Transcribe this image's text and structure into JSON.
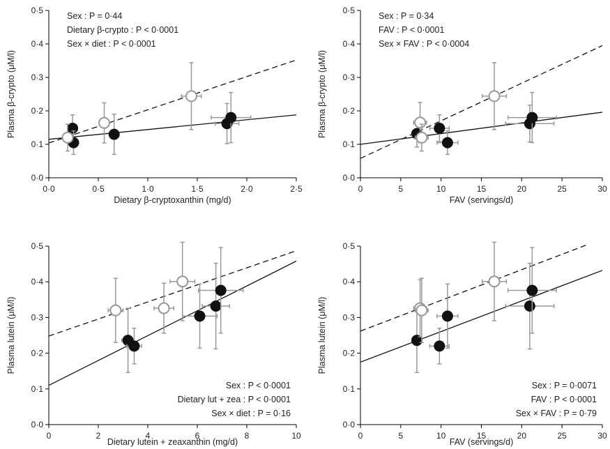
{
  "chart_data": [
    {
      "type": "scatter",
      "xlabel": "Dietary β-cryptoxanthin (mg/d)",
      "ylabel": "Plasma β-crypto (μM/l)",
      "xlim": [
        0,
        2.5
      ],
      "ylim": [
        0,
        0.5
      ],
      "xticks": [
        "0·0",
        "0·5",
        "1·0",
        "1·5",
        "2·0",
        "2·5"
      ],
      "yticks": [
        "0·0",
        "0·1",
        "0·2",
        "0·3",
        "0·4",
        "0·5"
      ],
      "xtick_values": [
        0,
        0.5,
        1.0,
        1.5,
        2.0,
        2.5
      ],
      "ytick_values": [
        0,
        0.1,
        0.2,
        0.3,
        0.4,
        0.5
      ],
      "stats": [
        "Sex : P = 0·44",
        "Dietary β-crypto : P < 0·0001",
        "Sex × diet : P < 0·0001"
      ],
      "stats_position": "top-left",
      "series": [
        {
          "style": "filled",
          "points": [
            {
              "x": 0.24,
              "y": 0.148,
              "xerr": 0.02,
              "yerr": 0.04
            },
            {
              "x": 0.25,
              "y": 0.105,
              "xerr": 0.03,
              "yerr": 0.035
            },
            {
              "x": 0.66,
              "y": 0.13,
              "xerr": 0.05,
              "yerr": 0.06
            },
            {
              "x": 1.8,
              "y": 0.162,
              "xerr": 0.12,
              "yerr": 0.06
            },
            {
              "x": 1.84,
              "y": 0.18,
              "xerr": 0.2,
              "yerr": 0.075
            }
          ],
          "fit": {
            "x": [
              0,
              2.5
            ],
            "y": [
              0.115,
              0.188
            ],
            "dash": false
          }
        },
        {
          "style": "open",
          "points": [
            {
              "x": 0.19,
              "y": 0.12,
              "xerr": 0.03,
              "yerr": 0.04
            },
            {
              "x": 0.56,
              "y": 0.164,
              "xerr": 0.05,
              "yerr": 0.06
            },
            {
              "x": 1.44,
              "y": 0.244,
              "xerr": 0.1,
              "yerr": 0.1
            }
          ],
          "fit": {
            "x": [
              0,
              2.5
            ],
            "y": [
              0.104,
              0.352
            ],
            "dash": true
          }
        }
      ]
    },
    {
      "type": "scatter",
      "xlabel": "FAV (servings/d)",
      "ylabel": "Plasma β-crypto (μM/l)",
      "xlim": [
        0,
        30
      ],
      "ylim": [
        0,
        0.5
      ],
      "xticks": [
        "0",
        "5",
        "10",
        "15",
        "20",
        "25",
        "30"
      ],
      "yticks": [
        "0·0",
        "0·1",
        "0·2",
        "0·3",
        "0·4",
        "0·5"
      ],
      "xtick_values": [
        0,
        5,
        10,
        15,
        20,
        25,
        30
      ],
      "ytick_values": [
        0,
        0.1,
        0.2,
        0.3,
        0.4,
        0.5
      ],
      "stats": [
        "Sex : P = 0·34",
        "FAV : P < 0·0001",
        "Sex × FAV : P < 0·0004"
      ],
      "stats_position": "top-left",
      "series": [
        {
          "style": "filled",
          "points": [
            {
              "x": 7.0,
              "y": 0.132,
              "xerr": 0.6,
              "yerr": 0.04
            },
            {
              "x": 9.8,
              "y": 0.148,
              "xerr": 1.2,
              "yerr": 0.04
            },
            {
              "x": 10.8,
              "y": 0.105,
              "xerr": 1.3,
              "yerr": 0.035
            },
            {
              "x": 21.0,
              "y": 0.162,
              "xerr": 3.0,
              "yerr": 0.055
            },
            {
              "x": 21.3,
              "y": 0.18,
              "xerr": 3.0,
              "yerr": 0.075
            }
          ],
          "fit": {
            "x": [
              0,
              30
            ],
            "y": [
              0.1,
              0.196
            ],
            "dash": false
          }
        },
        {
          "style": "open",
          "points": [
            {
              "x": 7.4,
              "y": 0.165,
              "xerr": 0.8,
              "yerr": 0.06
            },
            {
              "x": 7.6,
              "y": 0.12,
              "xerr": 0.8,
              "yerr": 0.04
            },
            {
              "x": 16.6,
              "y": 0.244,
              "xerr": 1.5,
              "yerr": 0.1
            }
          ],
          "fit": {
            "x": [
              0,
              30
            ],
            "y": [
              0.058,
              0.395
            ],
            "dash": true
          }
        }
      ]
    },
    {
      "type": "scatter",
      "xlabel": "Dietary lutein + zeaxanthin (mg/d)",
      "ylabel": "Plasma lutein (μM/l)",
      "xlim": [
        0,
        10
      ],
      "ylim": [
        0,
        0.5
      ],
      "xticks": [
        "0",
        "2",
        "4",
        "6",
        "8",
        "10"
      ],
      "yticks": [
        "0·0",
        "0·1",
        "0·2",
        "0·3",
        "0·4",
        "0·5"
      ],
      "xtick_values": [
        0,
        2,
        4,
        6,
        8,
        10
      ],
      "ytick_values": [
        0,
        0.1,
        0.2,
        0.3,
        0.4,
        0.5
      ],
      "stats": [
        "Sex : P < 0·0001",
        "Dietary lut + zea : P < 0·0001",
        "Sex × diet : P = 0·16"
      ],
      "stats_position": "bottom-right",
      "series": [
        {
          "style": "filled",
          "points": [
            {
              "x": 3.2,
              "y": 0.236,
              "xerr": 0.25,
              "yerr": 0.09
            },
            {
              "x": 3.45,
              "y": 0.22,
              "xerr": 0.3,
              "yerr": 0.05
            },
            {
              "x": 6.1,
              "y": 0.304,
              "xerr": 0.7,
              "yerr": 0.09
            },
            {
              "x": 6.75,
              "y": 0.332,
              "xerr": 0.55,
              "yerr": 0.12
            },
            {
              "x": 6.95,
              "y": 0.376,
              "xerr": 0.9,
              "yerr": 0.12
            }
          ],
          "fit": {
            "x": [
              0,
              10
            ],
            "y": [
              0.11,
              0.458
            ],
            "dash": false
          }
        },
        {
          "style": "open",
          "points": [
            {
              "x": 2.7,
              "y": 0.32,
              "xerr": 0.3,
              "yerr": 0.09
            },
            {
              "x": 4.65,
              "y": 0.326,
              "xerr": 0.4,
              "yerr": 0.07
            },
            {
              "x": 5.4,
              "y": 0.401,
              "xerr": 0.5,
              "yerr": 0.11
            }
          ],
          "fit": {
            "x": [
              0,
              10
            ],
            "y": [
              0.248,
              0.487
            ],
            "dash": true
          }
        }
      ]
    },
    {
      "type": "scatter",
      "xlabel": "FAV (servings/d)",
      "ylabel": "Plasma lutein (μM/l)",
      "xlim": [
        0,
        30
      ],
      "ylim": [
        0,
        0.5
      ],
      "xticks": [
        "0",
        "5",
        "10",
        "15",
        "20",
        "25",
        "30"
      ],
      "yticks": [
        "0·0",
        "0·1",
        "0·2",
        "0·3",
        "0·4",
        "0·5"
      ],
      "xtick_values": [
        0,
        5,
        10,
        15,
        20,
        25,
        30
      ],
      "ytick_values": [
        0,
        0.1,
        0.2,
        0.3,
        0.4,
        0.5
      ],
      "stats": [
        "Sex : P = 0·0071",
        "FAV : P < 0·0001",
        "Sex × FAV : P = 0·79"
      ],
      "stats_position": "bottom-right",
      "series": [
        {
          "style": "filled",
          "points": [
            {
              "x": 7.0,
              "y": 0.236,
              "xerr": 0.6,
              "yerr": 0.09
            },
            {
              "x": 9.8,
              "y": 0.22,
              "xerr": 1.2,
              "yerr": 0.05
            },
            {
              "x": 10.8,
              "y": 0.304,
              "xerr": 1.3,
              "yerr": 0.09
            },
            {
              "x": 21.0,
              "y": 0.332,
              "xerr": 3.0,
              "yerr": 0.12
            },
            {
              "x": 21.3,
              "y": 0.376,
              "xerr": 3.0,
              "yerr": 0.12
            }
          ],
          "fit": {
            "x": [
              0,
              30
            ],
            "y": [
              0.175,
              0.432
            ],
            "dash": false
          }
        },
        {
          "style": "open",
          "points": [
            {
              "x": 7.4,
              "y": 0.326,
              "xerr": 0.8,
              "yerr": 0.08
            },
            {
              "x": 7.6,
              "y": 0.32,
              "xerr": 0.8,
              "yerr": 0.09
            },
            {
              "x": 16.6,
              "y": 0.401,
              "xerr": 1.5,
              "yerr": 0.11
            }
          ],
          "fit": {
            "x": [
              0,
              30
            ],
            "y": [
              0.262,
              0.52
            ],
            "dash": true
          }
        }
      ]
    }
  ]
}
